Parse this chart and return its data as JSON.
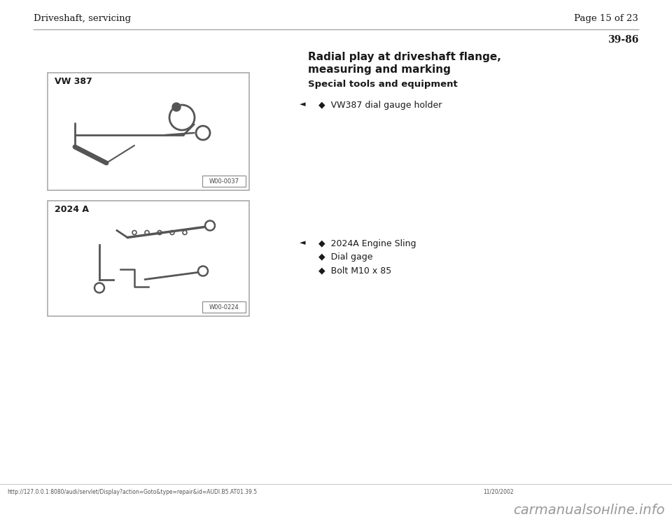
{
  "bg_color": "#ffffff",
  "header_left": "Driveshaft, servicing",
  "header_right": "Page 15 of 23",
  "section_number": "39-86",
  "title_line1": "Radial play at driveshaft flange,",
  "title_line2": "measuring and marking",
  "subtitle": "Special tools and equipment",
  "group1_item": "VW387 dial gauge holder",
  "group2_items": [
    "2024A Engine Sling",
    "Dial gage",
    "Bolt M10 x 85"
  ],
  "box1_label": "VW 387",
  "box1_code": "W00-0037",
  "box2_label": "2024 A",
  "box2_code": "W00-0224",
  "footer_url": "http://127.0.0.1:8080/audi/servlet/Display?action=Goto&type=repair&id=AUDI.B5.AT01.39.5",
  "footer_date": "11/20/2002",
  "footer_brand": "carmanualsонline.info",
  "text_color": "#1a1a1a",
  "light_gray": "#999999",
  "box_bg": "#f8f8f8",
  "box_border": "#aaaaaa",
  "code_box_border": "#888888"
}
